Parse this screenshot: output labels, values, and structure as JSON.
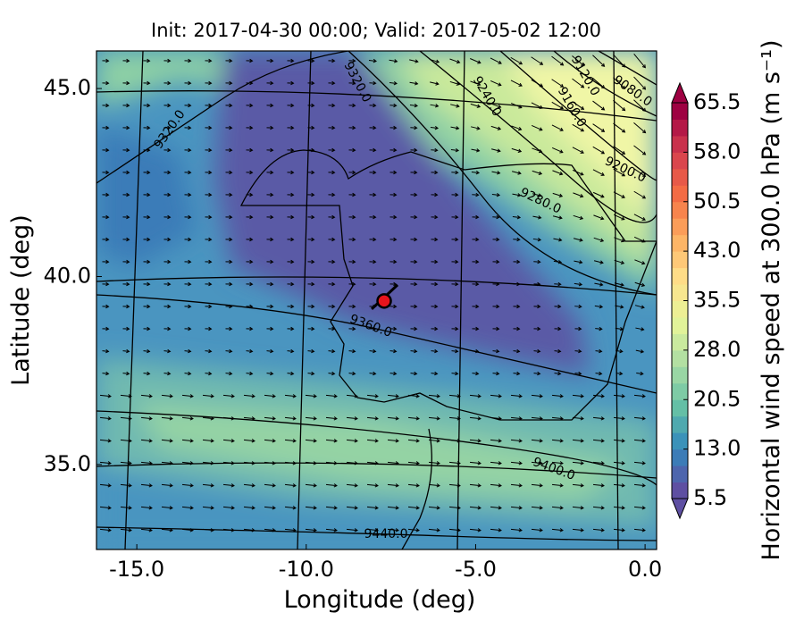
{
  "chart_data": {
    "type": "map",
    "title": "Init: 2017-04-30 00:00; Valid: 2017-05-02 12:00",
    "x_label": "Longitude (deg)",
    "y_label": "Latitude (deg)",
    "xlim": [
      -16.19,
      0.34
    ],
    "ylim": [
      32.74,
      46.0
    ],
    "xticks": [
      {
        "value": -15,
        "label": "-15.0"
      },
      {
        "value": -10,
        "label": "-10.0"
      },
      {
        "value": -5,
        "label": "-5.0"
      },
      {
        "value": 0,
        "label": "0.0"
      }
    ],
    "yticks": [
      {
        "value": 35,
        "label": "35.0"
      },
      {
        "value": 40,
        "label": "40.0"
      },
      {
        "value": 45,
        "label": "45.0"
      }
    ],
    "marker": {
      "lon": -7.7,
      "lat": 39.35,
      "color": "#e8141c"
    },
    "contour_labels": [
      {
        "value": 9320,
        "label": "9320.0"
      },
      {
        "value": 9320,
        "label": "9320.0"
      },
      {
        "value": 9240,
        "label": "9240.0"
      },
      {
        "value": 9120,
        "label": "9120.0"
      },
      {
        "value": 9080,
        "label": "9080.0"
      },
      {
        "value": 9160,
        "label": "9160.0"
      },
      {
        "value": 9200,
        "label": "9200.0"
      },
      {
        "value": 9280,
        "label": "9280.0"
      },
      {
        "value": 9360,
        "label": "9360.0"
      },
      {
        "value": 9400,
        "label": "9400.0"
      },
      {
        "value": 9440,
        "label": "9440.0"
      }
    ],
    "colorbar": {
      "label": "Horizontal wind speed at 300.0 hPa (m s⁻¹)",
      "clim": [
        5.5,
        65.5
      ],
      "ticks": [
        {
          "value": 5.5,
          "label": "5.5"
        },
        {
          "value": 13,
          "label": "13.0"
        },
        {
          "value": 20.5,
          "label": "20.5"
        },
        {
          "value": 28,
          "label": "28.0"
        },
        {
          "value": 35.5,
          "label": "35.5"
        },
        {
          "value": 43,
          "label": "43.0"
        },
        {
          "value": 50.5,
          "label": "50.5"
        },
        {
          "value": 58,
          "label": "58.0"
        },
        {
          "value": 65.5,
          "label": "65.5"
        }
      ],
      "levels": [
        5.5,
        8,
        10.5,
        13,
        15.5,
        18,
        20.5,
        23,
        25.5,
        28,
        30.5,
        33,
        35.5,
        38,
        40.5,
        43,
        45.5,
        48,
        50.5,
        53,
        55.5,
        58,
        60.5,
        63,
        65.5
      ],
      "colormap": [
        "#5e4fa2",
        "#3288bd",
        "#66c2a5",
        "#abdda4",
        "#e6f598",
        "#fee08b",
        "#fdae61",
        "#f46d43",
        "#d53e4f",
        "#9e0142"
      ]
    }
  }
}
